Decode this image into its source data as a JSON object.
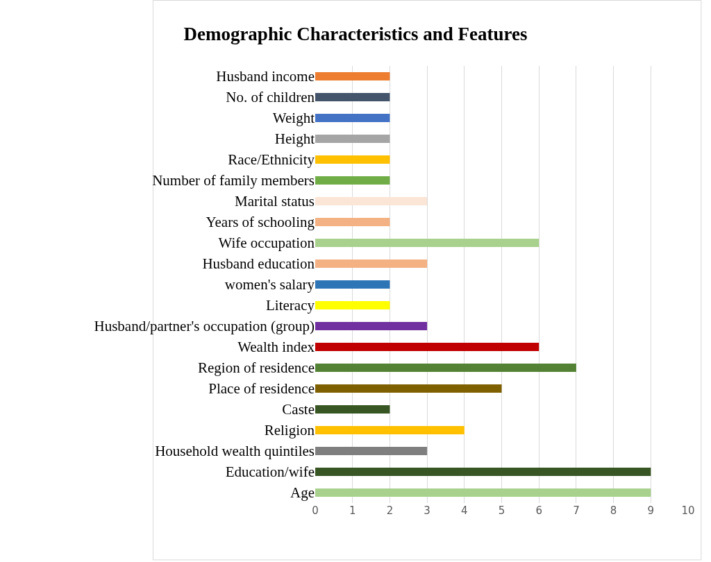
{
  "chart_data": {
    "type": "bar",
    "orientation": "horizontal",
    "title": "Demographic Characteristics and Features",
    "categories": [
      "Husband income",
      "No. of children",
      "Weight",
      "Height",
      "Race/Ethnicity",
      "Number of family members",
      "Marital status",
      "Years of schooling",
      "Wife occupation",
      "Husband education",
      "women's salary",
      "Literacy",
      "Husband/partner's occupation (group)",
      "Wealth index",
      "Region of residence",
      "Place of residence",
      "Caste",
      "Religion",
      "Household wealth quintiles",
      "Education/wife",
      "Age"
    ],
    "values": [
      2,
      2,
      2,
      2,
      2,
      2,
      3,
      2,
      6,
      3,
      2,
      2,
      3,
      6,
      7,
      5,
      2,
      4,
      3,
      9,
      9
    ],
    "colors": [
      "#ed7d31",
      "#44546a",
      "#4472c4",
      "#a5a5a5",
      "#ffc000",
      "#70ad47",
      "#fbe5d6",
      "#f4b183",
      "#a9d18e",
      "#f4b183",
      "#2e75b6",
      "#ffff00",
      "#7030a0",
      "#c00000",
      "#548235",
      "#7f6000",
      "#375623",
      "#ffc000",
      "#7f7f7f",
      "#375623",
      "#a9d18e"
    ],
    "xlim": [
      0,
      10
    ],
    "xticks": [
      0,
      1,
      2,
      3,
      4,
      5,
      6,
      7,
      8,
      9,
      10
    ],
    "grid": "x",
    "legend": false
  }
}
